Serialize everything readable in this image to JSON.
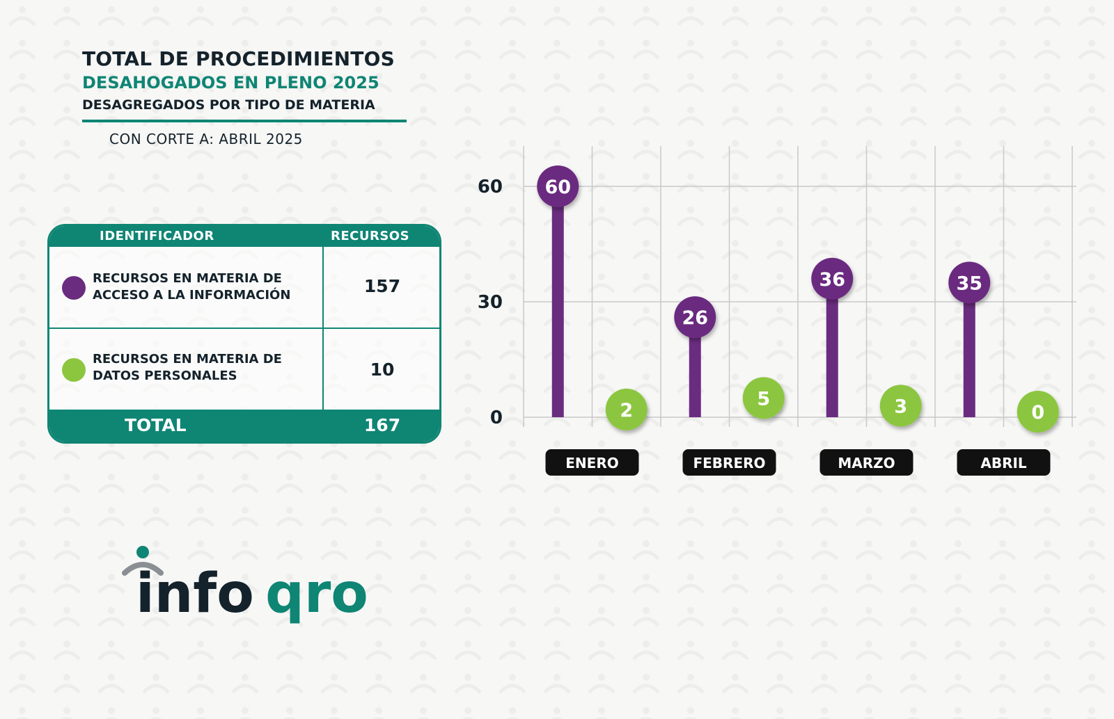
{
  "header": {
    "title_line1": "TOTAL DE PROCEDIMIENTOS",
    "title_line2": "DESAHOGADOS EN PLENO 2025",
    "title_line3": "DESAGREGADOS POR TIPO DE MATERIA",
    "cutoff": "CON CORTE A: ABRIL 2025"
  },
  "table": {
    "col_identifier": "IDENTIFICADOR",
    "col_resources": "RECURSOS",
    "rows": [
      {
        "label_line1": "RECURSOS EN MATERIA DE",
        "label_line2": "ACCESO A LA INFORMACIÓN",
        "value": "157",
        "color": "#6a2c7f"
      },
      {
        "label_line1": "RECURSOS EN MATERIA DE",
        "label_line2": "DATOS PERSONALES",
        "value": "10",
        "color": "#8cc63f"
      }
    ],
    "total_label": "TOTAL",
    "total_value": "167"
  },
  "logo": {
    "text_part1": "info",
    "text_part2": "qro"
  },
  "chart_data": {
    "type": "lollipop",
    "categories": [
      "ENERO",
      "FEBRERO",
      "MARZO",
      "ABRIL"
    ],
    "yticks": [
      0,
      30,
      60
    ],
    "ylim": [
      0,
      70
    ],
    "grid": true,
    "series": [
      {
        "values": [
          60,
          26,
          36,
          35
        ],
        "color": "#6a2c7f"
      },
      {
        "values": [
          2,
          5,
          3,
          0
        ],
        "color": "#8cc63f"
      }
    ]
  },
  "colors": {
    "teal": "#0f8574",
    "purple": "#6a2c7f",
    "green": "#8cc63f",
    "dark": "#14222b"
  }
}
